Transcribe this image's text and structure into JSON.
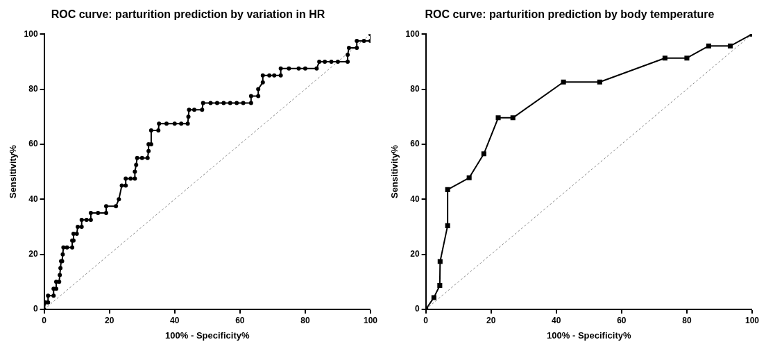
{
  "chart_data": [
    {
      "type": "line",
      "title": "ROC curve: parturition prediction by variation in HR",
      "xlabel": "100% - Specificity%",
      "ylabel": "Sensitivity%",
      "xlim": [
        0,
        100
      ],
      "xticks": [
        0,
        20,
        40,
        60,
        80,
        100
      ],
      "ylim": [
        0,
        100
      ],
      "yticks": [
        0,
        20,
        40,
        60,
        80,
        100
      ],
      "grid": false,
      "legend": false,
      "marker": "circle",
      "line_style": "solid",
      "series": [
        {
          "color": "#000000",
          "x": [
            0,
            0.4,
            1.2,
            1.2,
            2.9,
            2.9,
            3.7,
            3.7,
            4.6,
            4.8,
            5,
            5.2,
            5.5,
            5.7,
            5.9,
            7,
            8.6,
            8.6,
            9,
            9,
            10,
            10.3,
            11.5,
            11.5,
            13,
            14.3,
            14.3,
            16.5,
            19,
            19,
            22,
            22.9,
            23.8,
            25,
            25,
            26.5,
            27.8,
            27.8,
            28.2,
            28.5,
            30,
            31.7,
            32,
            32,
            32.8,
            32.8,
            35,
            35.2,
            37.5,
            40,
            42,
            44,
            44.2,
            44.4,
            46,
            48.4,
            48.7,
            51,
            53,
            55,
            57,
            59,
            61,
            63.4,
            63.4,
            65.6,
            65.6,
            67,
            67,
            69,
            70.5,
            72.5,
            72.5,
            75,
            78,
            80,
            83.5,
            84.3,
            86,
            88,
            90,
            93,
            93,
            93.4,
            95.8,
            95.8,
            98,
            100,
            100
          ],
          "values": [
            0,
            2.5,
            2.5,
            5,
            5,
            7.5,
            7.5,
            10,
            10,
            12.5,
            15,
            17.5,
            17.5,
            20,
            22.5,
            22.5,
            22.5,
            25,
            25,
            27.5,
            27.5,
            30,
            30,
            32.5,
            32.5,
            32.5,
            35,
            35,
            35,
            37.5,
            37.5,
            40,
            45,
            45,
            47.5,
            47.5,
            47.5,
            50,
            52.5,
            55,
            55,
            55,
            57.5,
            60,
            60,
            65,
            65,
            67.5,
            67.5,
            67.5,
            67.5,
            67.5,
            70,
            72.5,
            72.5,
            72.5,
            75,
            75,
            75,
            75,
            75,
            75,
            75,
            75,
            77.5,
            77.5,
            80,
            82.5,
            85,
            85,
            85,
            85,
            87.5,
            87.5,
            87.5,
            87.5,
            87.5,
            90,
            90,
            90,
            90,
            90,
            92.5,
            95,
            95,
            97.5,
            97.5,
            97.5,
            100
          ]
        },
        {
          "color": "#888888",
          "marker": "none",
          "line_style": "dashed",
          "x": [
            0,
            100
          ],
          "values": [
            0,
            100
          ]
        }
      ]
    },
    {
      "type": "line",
      "title": "ROC curve: parturition prediction by body temperature",
      "xlabel": "100% - Specificity%",
      "ylabel": "Sensitivity%",
      "xlim": [
        0,
        100
      ],
      "xticks": [
        0,
        20,
        40,
        60,
        80,
        100
      ],
      "ylim": [
        0,
        100
      ],
      "yticks": [
        0,
        20,
        40,
        60,
        80,
        100
      ],
      "grid": false,
      "legend": false,
      "marker": "square",
      "line_style": "solid",
      "series": [
        {
          "color": "#000000",
          "x": [
            0,
            2.5,
            4.3,
            4.4,
            6.7,
            6.7,
            13.3,
            17.8,
            22.2,
            26.7,
            42.2,
            53.3,
            73.3,
            80,
            86.7,
            93.3,
            100
          ],
          "values": [
            0,
            4.3,
            8.7,
            17.4,
            30.4,
            43.5,
            47.8,
            56.5,
            69.6,
            69.6,
            82.6,
            82.6,
            91.3,
            91.3,
            95.7,
            95.7,
            100
          ]
        },
        {
          "color": "#888888",
          "marker": "none",
          "line_style": "dashed",
          "x": [
            0,
            100
          ],
          "values": [
            0,
            100
          ]
        }
      ]
    }
  ]
}
